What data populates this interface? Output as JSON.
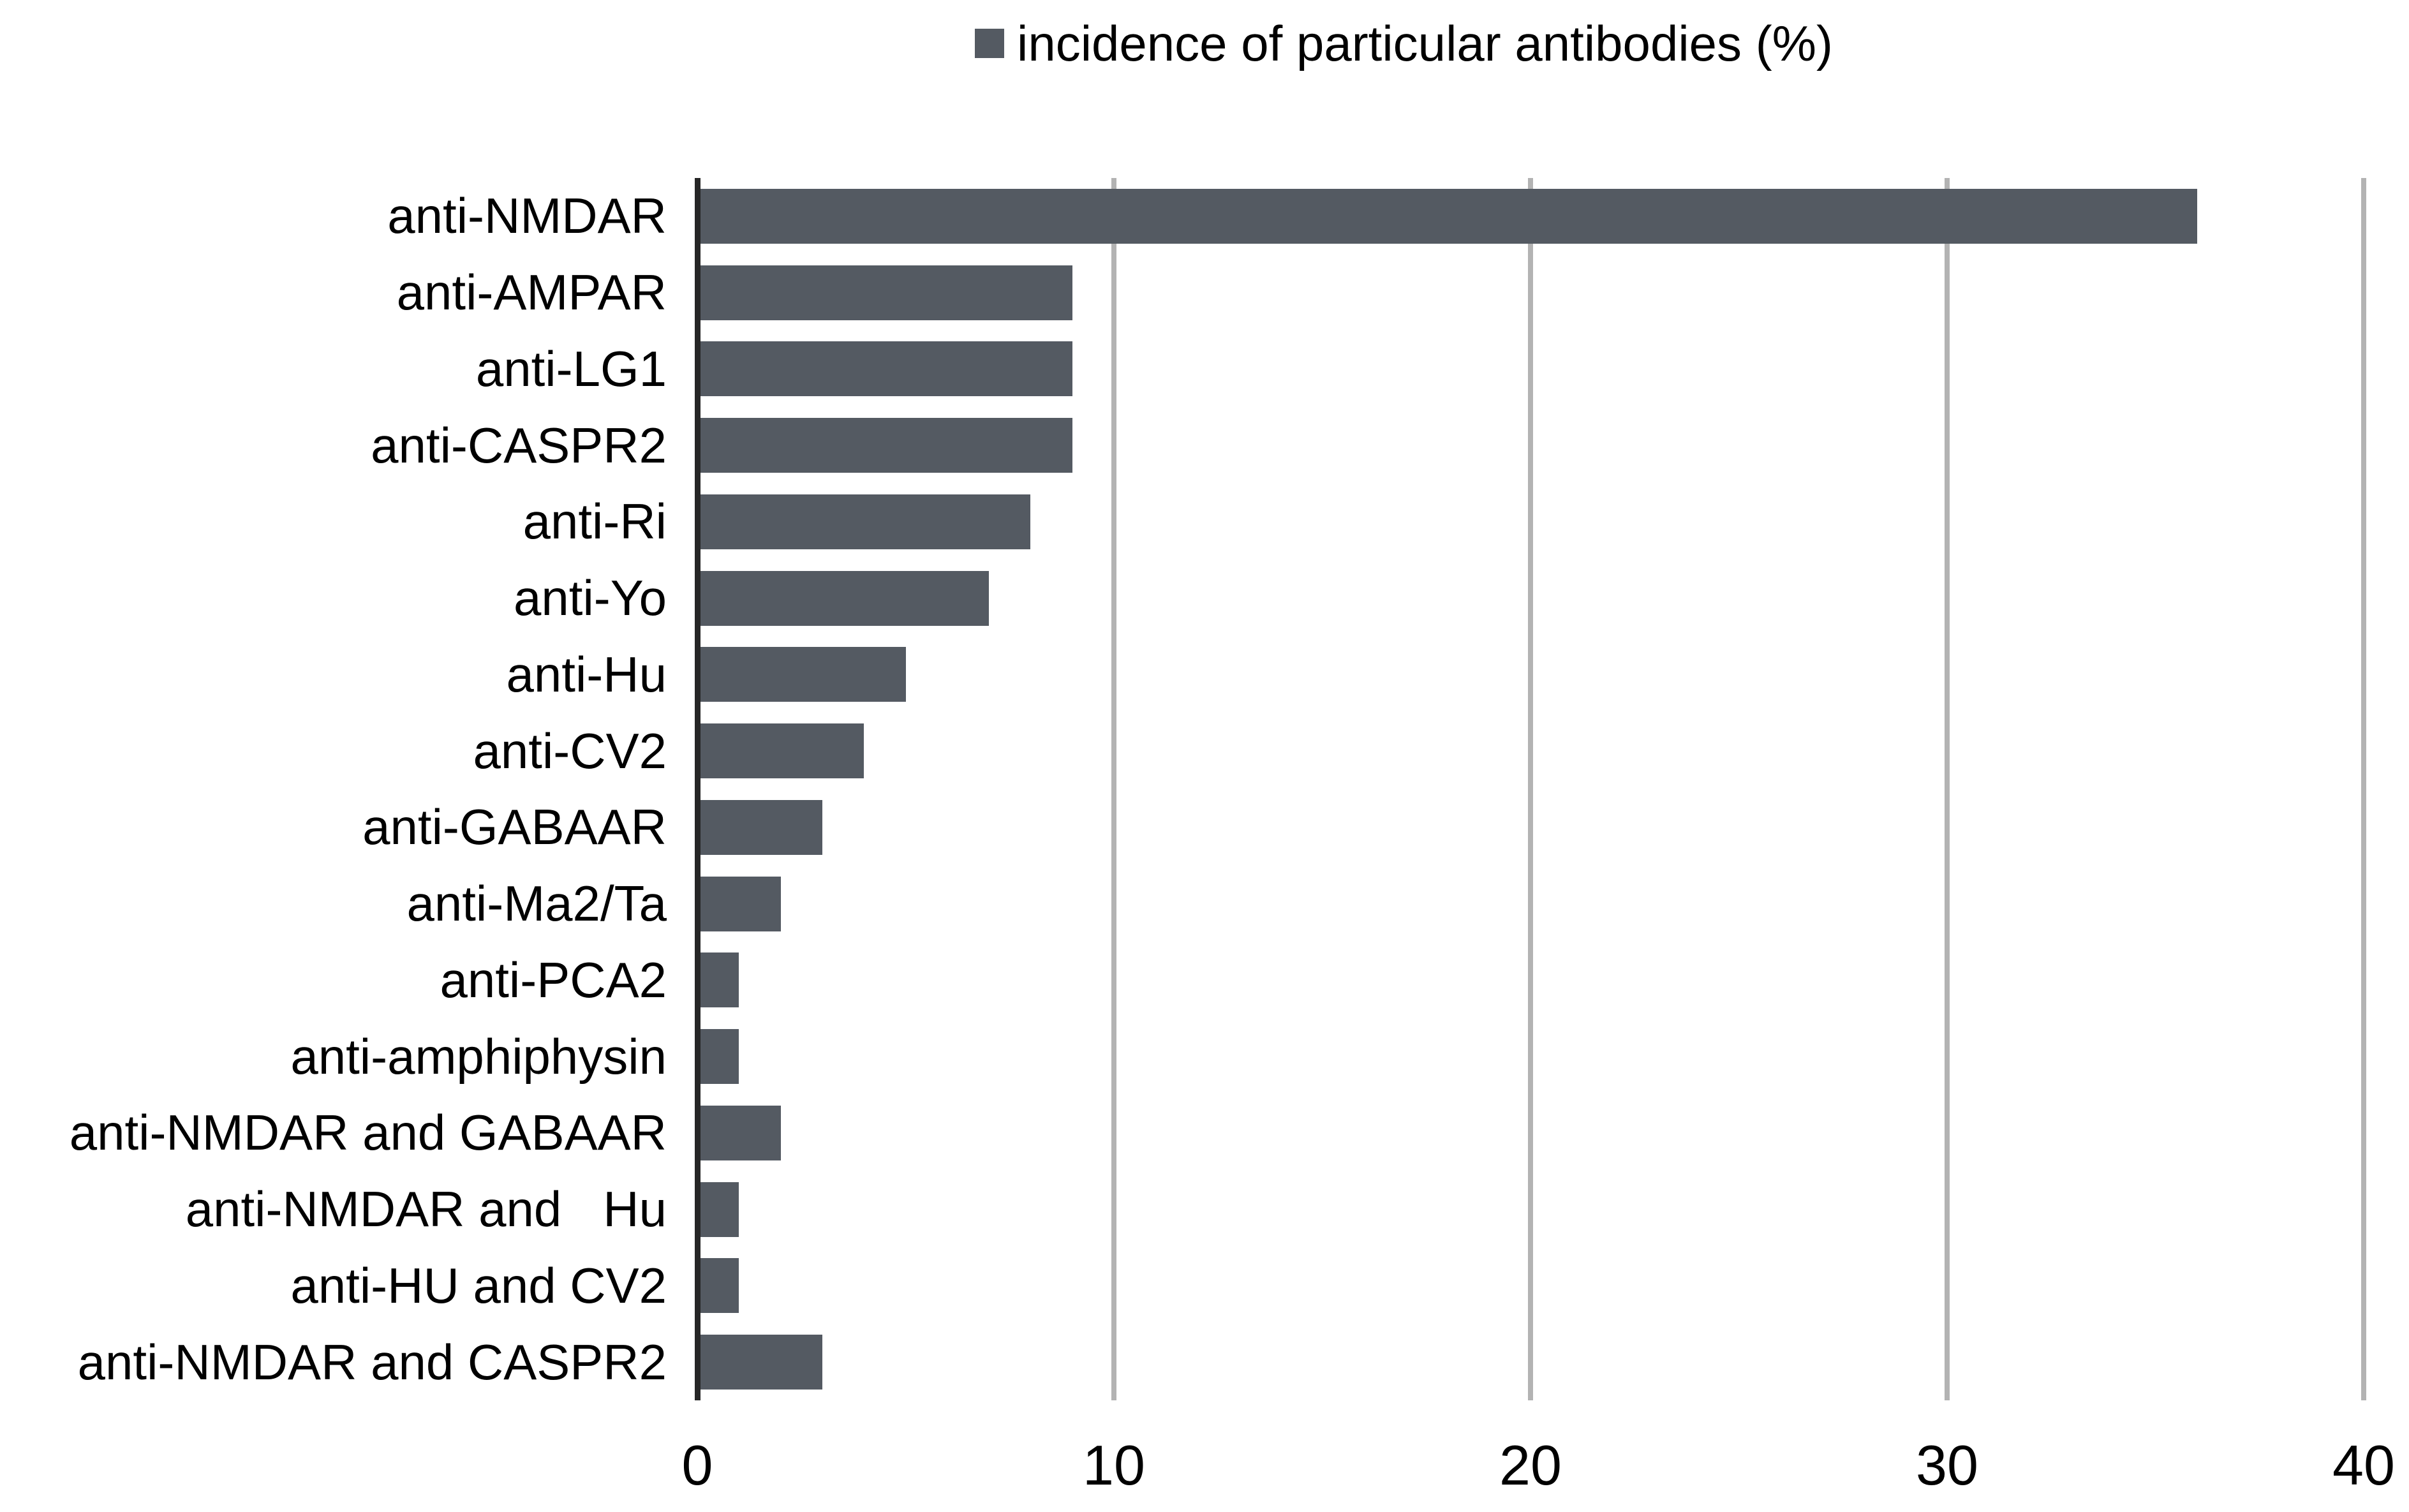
{
  "chart_data": {
    "type": "bar",
    "orientation": "horizontal",
    "title": "",
    "legend": "incidence of particular antibodies (%)",
    "legend_position": "top-center",
    "categories": [
      "anti-NMDAR",
      "anti-AMPAR",
      "anti-LG1",
      "anti-CASPR2",
      "anti-Ri",
      "anti-Yo",
      "anti-Hu",
      "anti-CV2",
      "anti-GABAAR",
      "anti-Ma2/Ta",
      "anti-PCA2",
      "anti-amphiphysin",
      "anti-NMDAR and GABAAR",
      "anti-NMDAR and   Hu",
      "anti-HU and CV2",
      "anti-NMDAR and CASPR2"
    ],
    "values": [
      36,
      9,
      9,
      9,
      8,
      7,
      5,
      4,
      3,
      2,
      1,
      1,
      2,
      1,
      1,
      3
    ],
    "xlabel": "",
    "ylabel": "",
    "xlim": [
      0,
      40
    ],
    "x_ticks": [
      0,
      10,
      20,
      30,
      40
    ],
    "grid": "vertical-only",
    "colors": {
      "bar": "#545a62",
      "gridline": "#b3b3b3",
      "axis_line": "#262626",
      "text": "#000000",
      "background": "#ffffff"
    }
  }
}
